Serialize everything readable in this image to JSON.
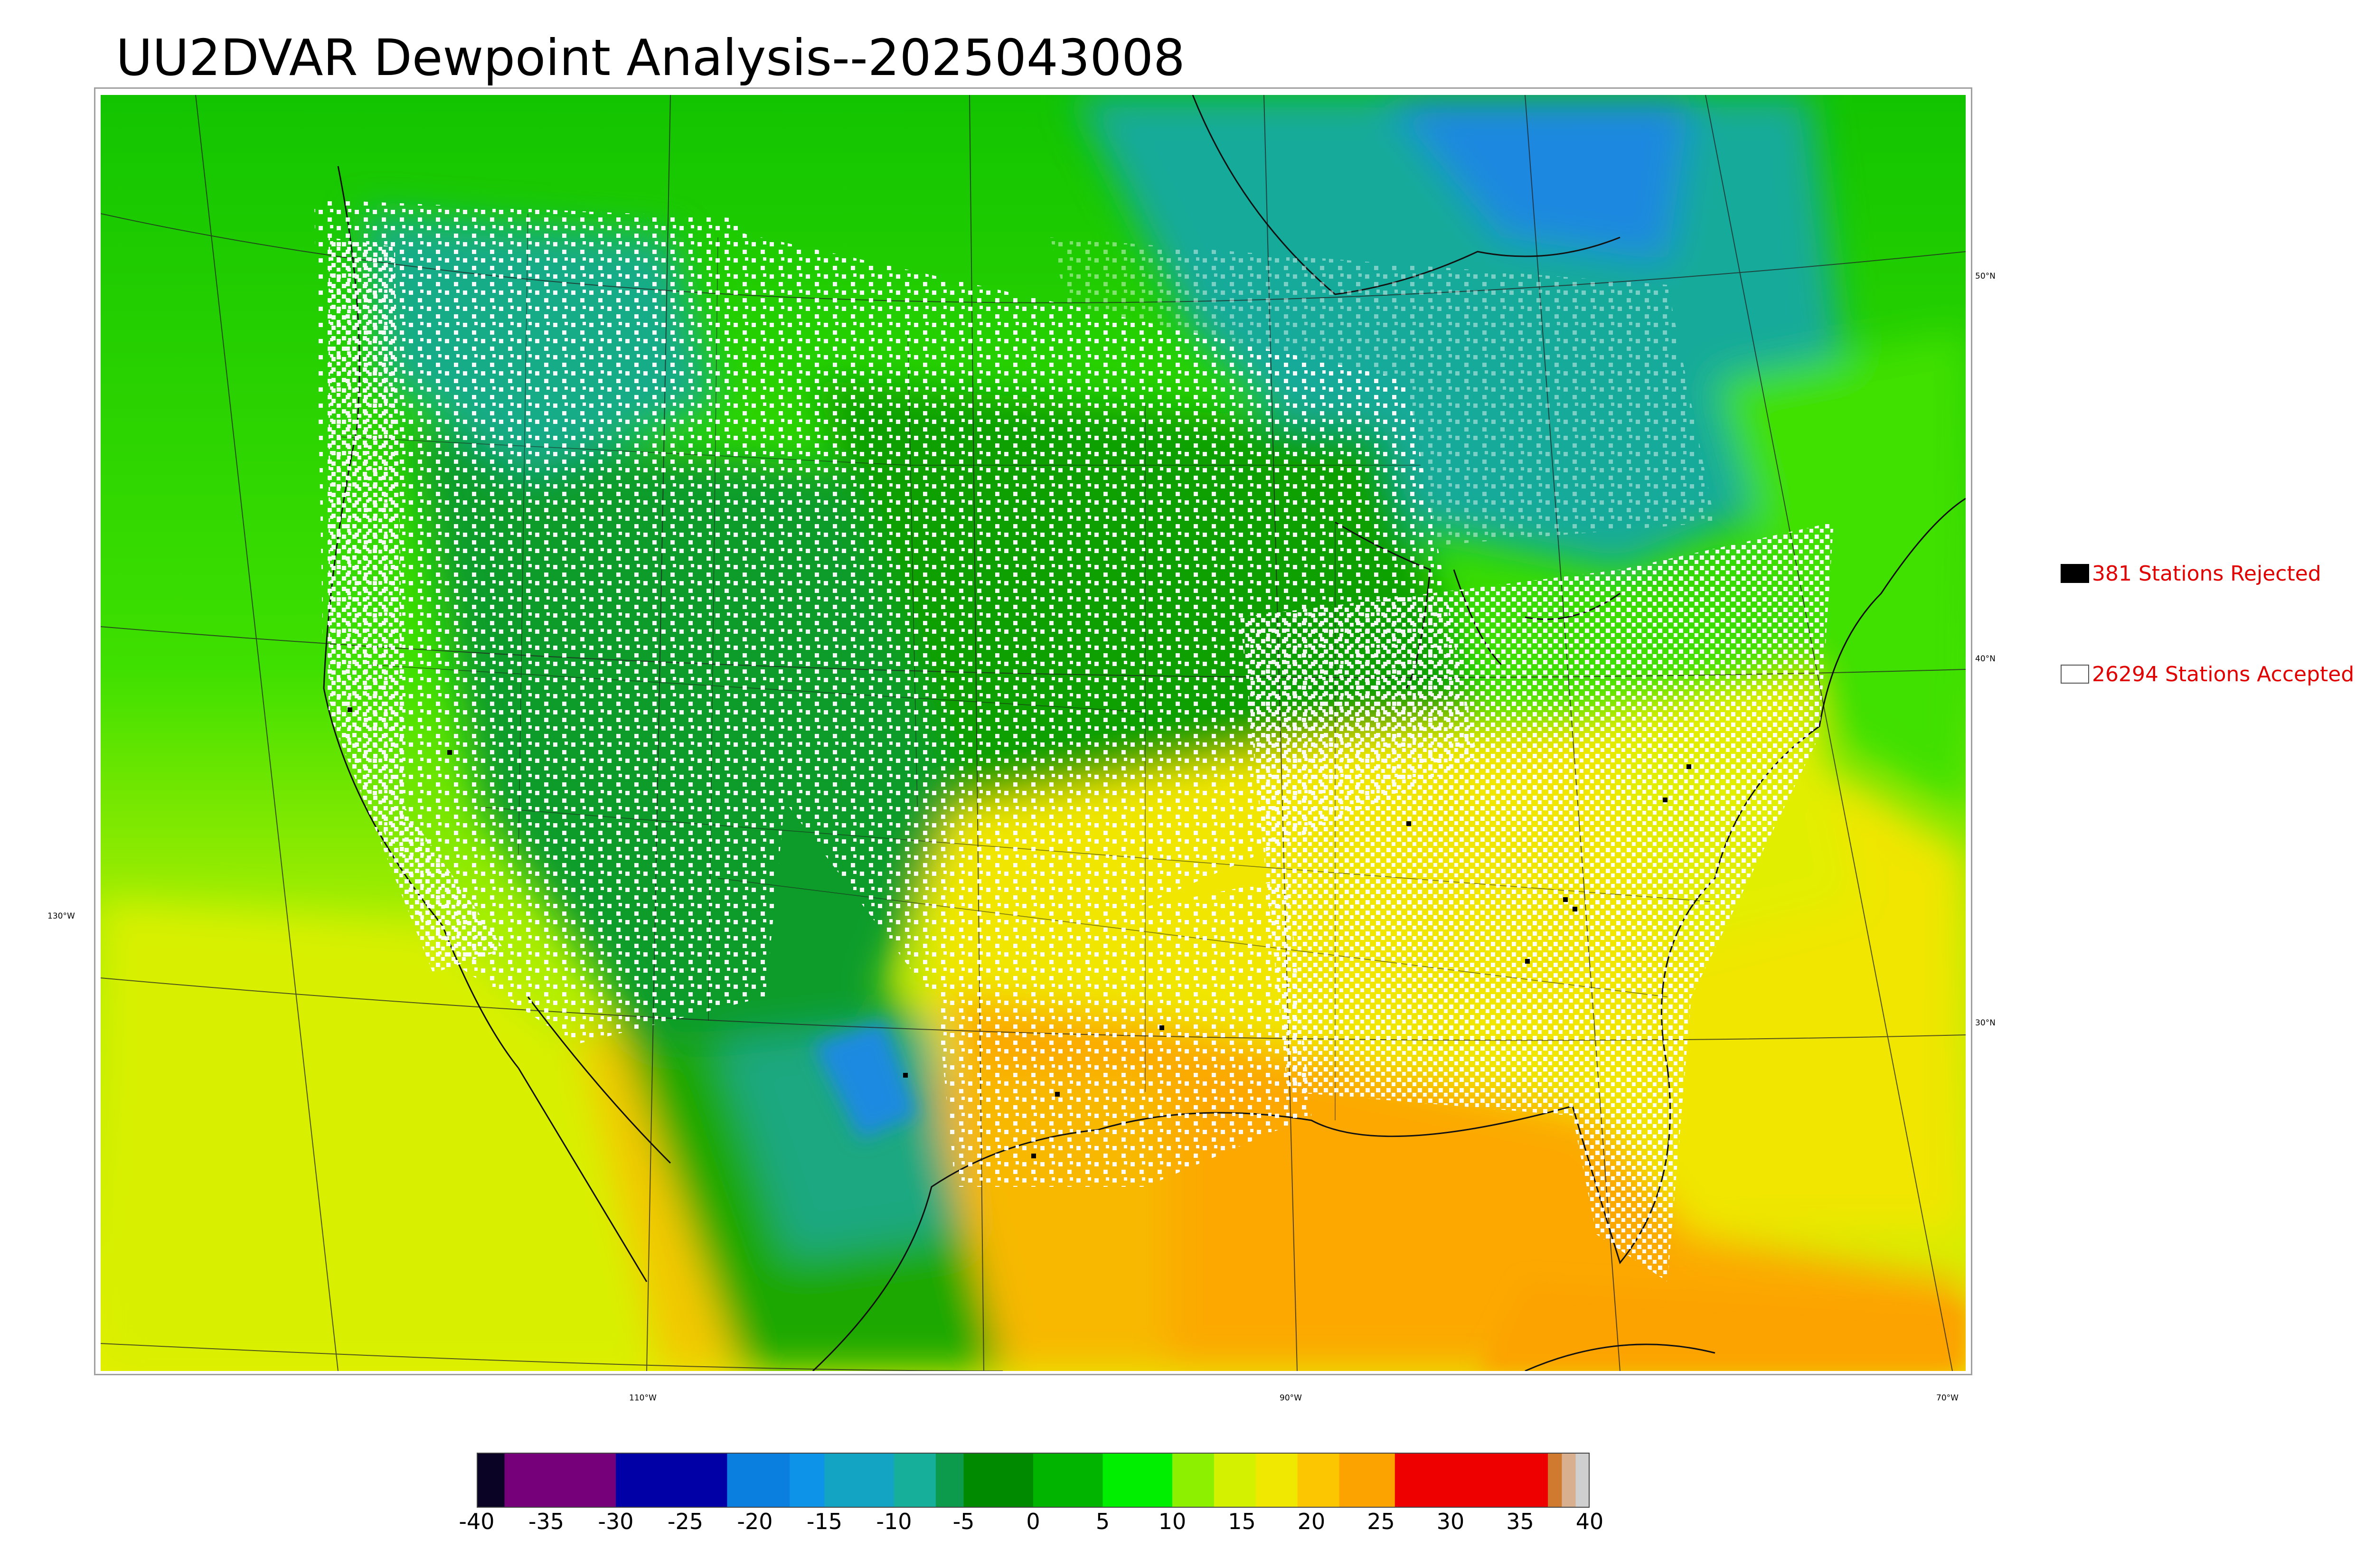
{
  "title": "UU2DVAR Dewpoint Analysis--2025043008",
  "map": {
    "lon_labels": [
      "110°W",
      "90°W",
      "70°W"
    ],
    "lat_labels": [
      "50°N",
      "40°N",
      "30°N"
    ],
    "west_label": "130°W"
  },
  "legend": {
    "rejected": {
      "label": "381 Stations Rejected",
      "swatch_color": "#000000"
    },
    "accepted": {
      "label": "26294 Stations Accepted",
      "swatch_color": "#ffffff"
    },
    "text_color": "#e00000"
  },
  "colorbar": {
    "ticks": [
      "-40",
      "-35",
      "-30",
      "-25",
      "-20",
      "-15",
      "-10",
      "-5",
      "0",
      "5",
      "10",
      "15",
      "20",
      "25",
      "30",
      "35",
      "40"
    ],
    "range": [
      -40,
      40
    ],
    "stops": [
      {
        "from": -40,
        "to": -38,
        "color": "#0b0326"
      },
      {
        "from": -38,
        "to": -30,
        "color": "#76007a"
      },
      {
        "from": -30,
        "to": -22,
        "color": "#0000a6"
      },
      {
        "from": -22,
        "to": -17.5,
        "color": "#0b7fe0"
      },
      {
        "from": -17.5,
        "to": -15,
        "color": "#0d93e8"
      },
      {
        "from": -15,
        "to": -10,
        "color": "#12a4c2"
      },
      {
        "from": -10,
        "to": -7,
        "color": "#16b09a"
      },
      {
        "from": -7,
        "to": -5,
        "color": "#0c9a4c"
      },
      {
        "from": -5,
        "to": 0,
        "color": "#008a00"
      },
      {
        "from": 0,
        "to": 5,
        "color": "#00b400"
      },
      {
        "from": 5,
        "to": 10,
        "color": "#00ee00"
      },
      {
        "from": 10,
        "to": 13,
        "color": "#8cf000"
      },
      {
        "from": 13,
        "to": 16,
        "color": "#d4f200"
      },
      {
        "from": 16,
        "to": 19,
        "color": "#f0e800"
      },
      {
        "from": 19,
        "to": 22,
        "color": "#fcc700"
      },
      {
        "from": 22,
        "to": 26,
        "color": "#fca300"
      },
      {
        "from": 26,
        "to": 37,
        "color": "#ee0000"
      },
      {
        "from": 37,
        "to": 38,
        "color": "#d07a30"
      },
      {
        "from": 38,
        "to": 39,
        "color": "#d8b090"
      },
      {
        "from": 39,
        "to": 40,
        "color": "#cfcfcf"
      }
    ]
  }
}
